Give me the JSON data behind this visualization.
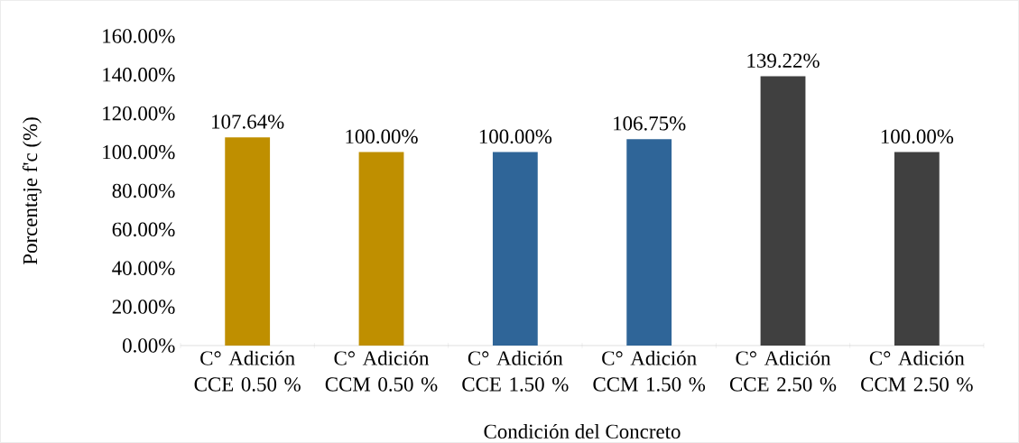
{
  "chart_data": {
    "type": "bar",
    "xlabel": "Condición del Concreto",
    "ylabel": "Porcentaje f'c (%)",
    "categories": [
      "C° Adición CCE 0.50 %",
      "C° Adición CCM 0.50 %",
      "C° Adición CCE 1.50 %",
      "C° Adición CCM 1.50 %",
      "C° Adición CCE 2.50 %",
      "C° Adición CCM 2.50 %"
    ],
    "values": [
      107.64,
      100.0,
      100.0,
      106.75,
      139.22,
      100.0
    ],
    "colors": [
      "#bf8f00",
      "#bf8f00",
      "#2f6598",
      "#2f6598",
      "#404040",
      "#404040"
    ],
    "value_labels": [
      "107.64%",
      "100.00%",
      "100.00%",
      "106.75%",
      "139.22%",
      "100.00%"
    ],
    "ylim": [
      0,
      160
    ],
    "yticks": [
      {
        "value": 0,
        "label": "0.00%"
      },
      {
        "value": 20,
        "label": "20.00%"
      },
      {
        "value": 40,
        "label": "40.00%"
      },
      {
        "value": 60,
        "label": "60.00%"
      },
      {
        "value": 80,
        "label": "80.00%"
      },
      {
        "value": 100,
        "label": "100.00%"
      },
      {
        "value": 120,
        "label": "120.00%"
      },
      {
        "value": 140,
        "label": "140.00%"
      },
      {
        "value": 160,
        "label": "160.00%"
      }
    ],
    "grid": false
  }
}
